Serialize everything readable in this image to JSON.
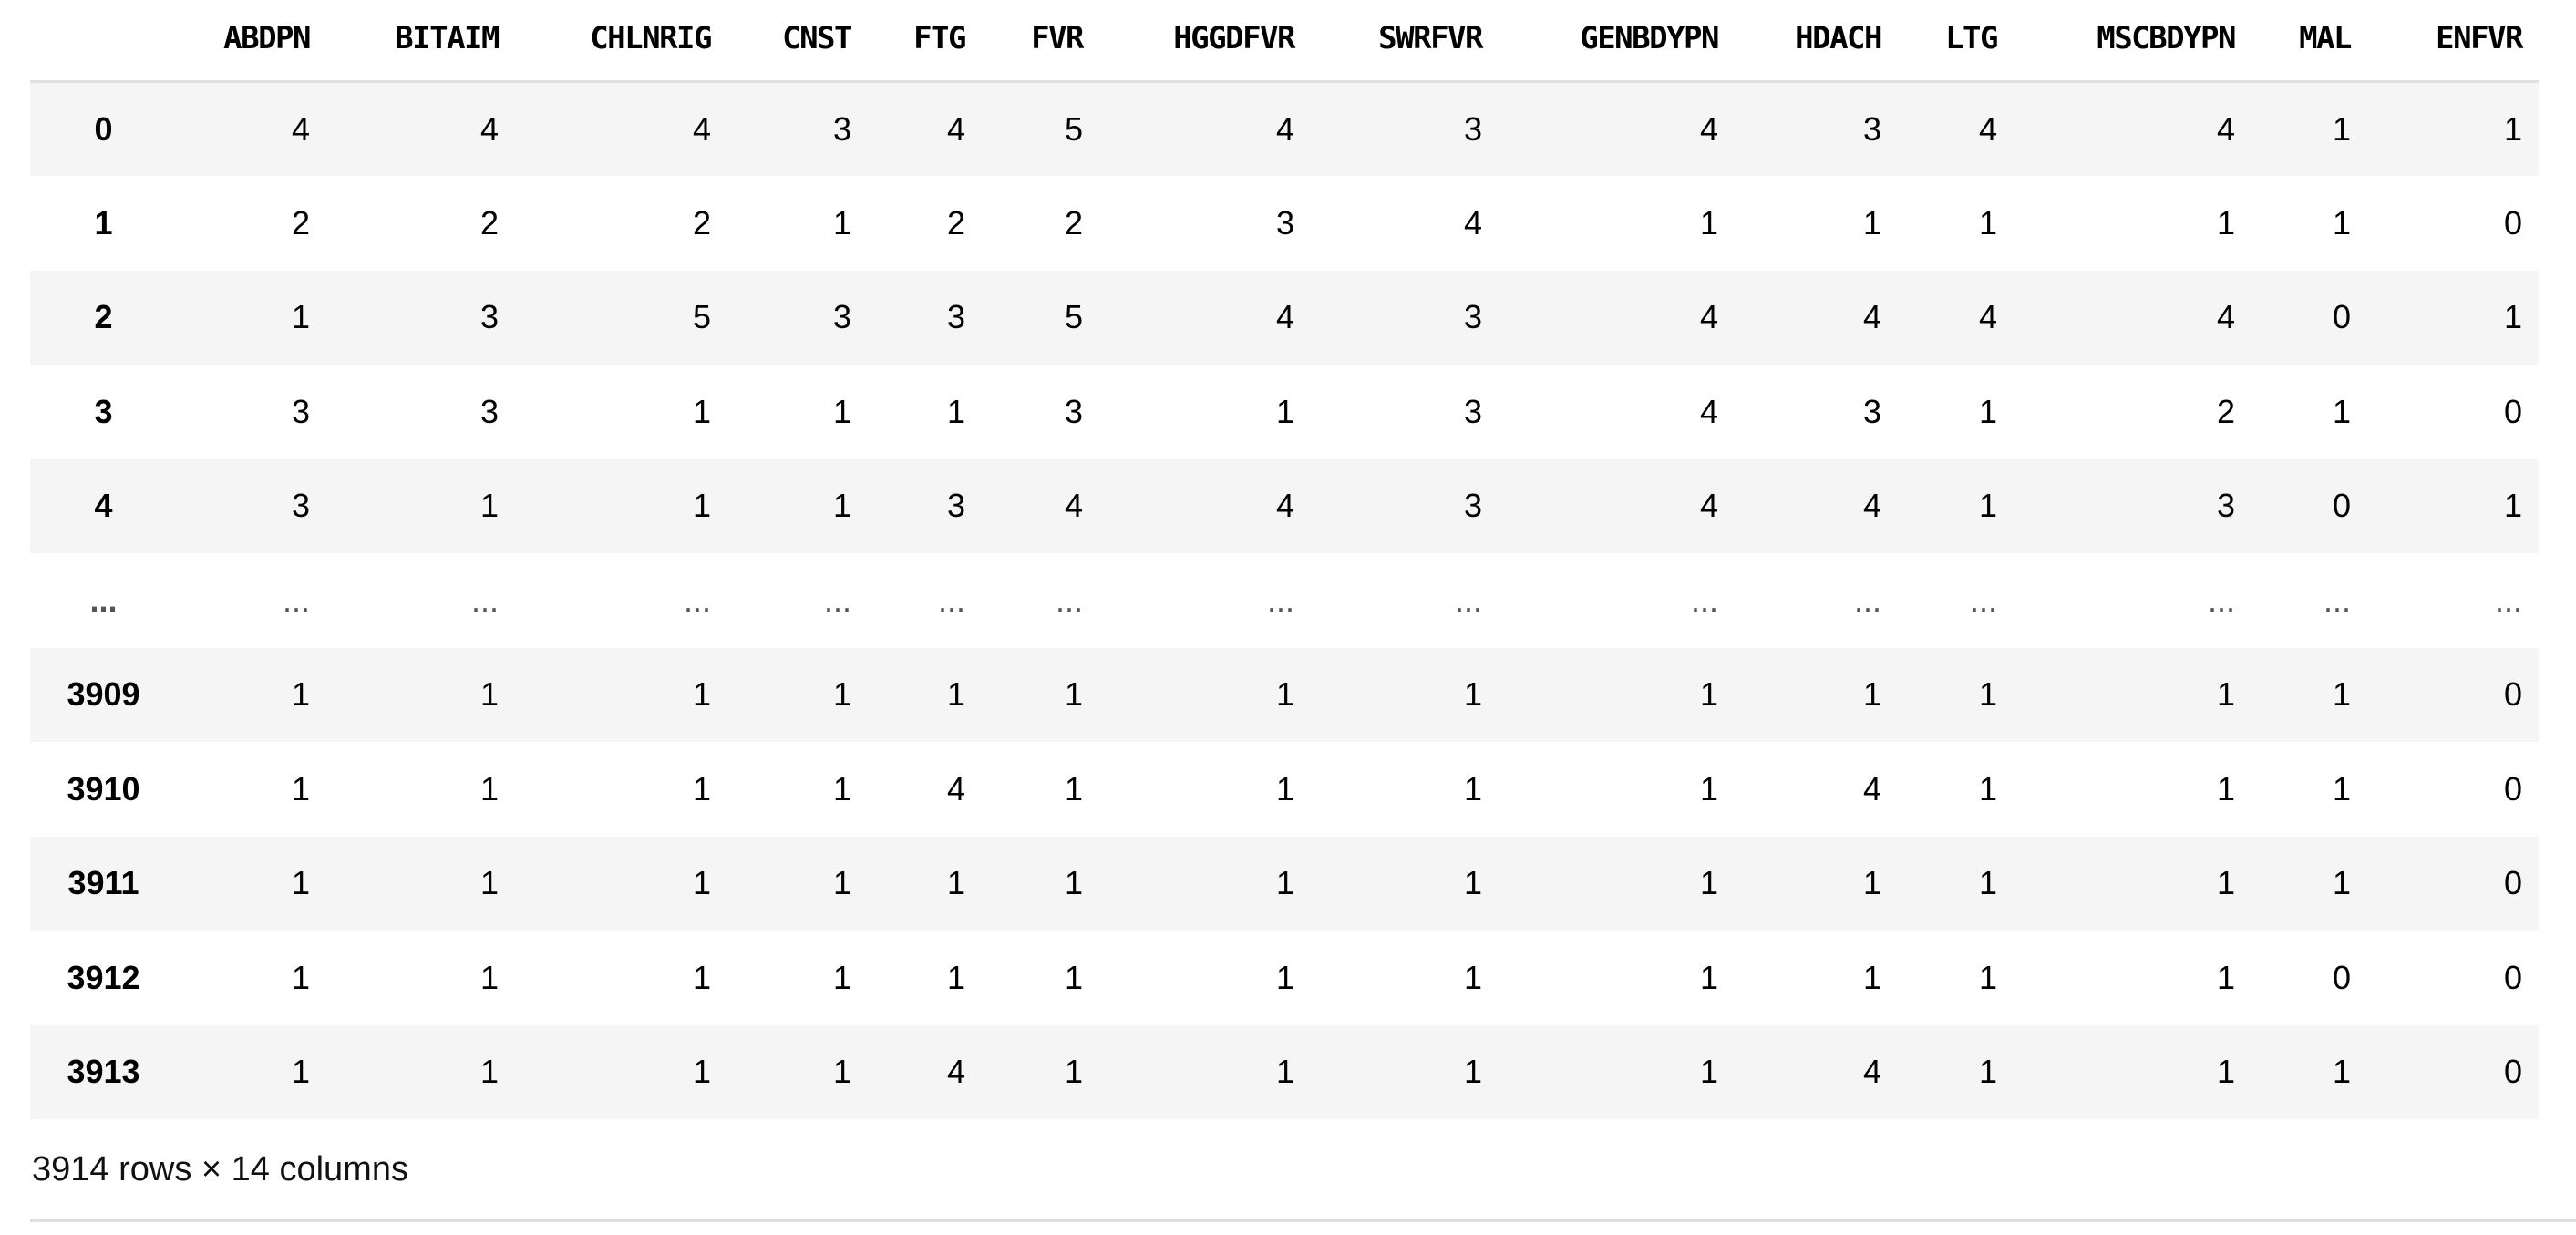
{
  "dataframe": {
    "columns": [
      "ABDPN",
      "BITAIM",
      "CHLNRIG",
      "CNST",
      "FTG",
      "FVR",
      "HGGDFVR",
      "SWRFVR",
      "GENBDYPN",
      "HDACH",
      "LTG",
      "MSCBDYPN",
      "MAL",
      "ENFVR"
    ],
    "rows": [
      {
        "index": "0",
        "values": [
          "4",
          "4",
          "4",
          "3",
          "4",
          "5",
          "4",
          "3",
          "4",
          "3",
          "4",
          "4",
          "1",
          "1"
        ]
      },
      {
        "index": "1",
        "values": [
          "2",
          "2",
          "2",
          "1",
          "2",
          "2",
          "3",
          "4",
          "1",
          "1",
          "1",
          "1",
          "1",
          "0"
        ]
      },
      {
        "index": "2",
        "values": [
          "1",
          "3",
          "5",
          "3",
          "3",
          "5",
          "4",
          "3",
          "4",
          "4",
          "4",
          "4",
          "0",
          "1"
        ]
      },
      {
        "index": "3",
        "values": [
          "3",
          "3",
          "1",
          "1",
          "1",
          "3",
          "1",
          "3",
          "4",
          "3",
          "1",
          "2",
          "1",
          "0"
        ]
      },
      {
        "index": "4",
        "values": [
          "3",
          "1",
          "1",
          "1",
          "3",
          "4",
          "4",
          "3",
          "4",
          "4",
          "1",
          "3",
          "0",
          "1"
        ]
      },
      {
        "index": "...",
        "values": [
          "...",
          "...",
          "...",
          "...",
          "...",
          "...",
          "...",
          "...",
          "...",
          "...",
          "...",
          "...",
          "...",
          "..."
        ]
      },
      {
        "index": "3909",
        "values": [
          "1",
          "1",
          "1",
          "1",
          "1",
          "1",
          "1",
          "1",
          "1",
          "1",
          "1",
          "1",
          "1",
          "0"
        ]
      },
      {
        "index": "3910",
        "values": [
          "1",
          "1",
          "1",
          "1",
          "4",
          "1",
          "1",
          "1",
          "1",
          "4",
          "1",
          "1",
          "1",
          "0"
        ]
      },
      {
        "index": "3911",
        "values": [
          "1",
          "1",
          "1",
          "1",
          "1",
          "1",
          "1",
          "1",
          "1",
          "1",
          "1",
          "1",
          "1",
          "0"
        ]
      },
      {
        "index": "3912",
        "values": [
          "1",
          "1",
          "1",
          "1",
          "1",
          "1",
          "1",
          "1",
          "1",
          "1",
          "1",
          "1",
          "0",
          "0"
        ]
      },
      {
        "index": "3913",
        "values": [
          "1",
          "1",
          "1",
          "1",
          "4",
          "1",
          "1",
          "1",
          "1",
          "4",
          "1",
          "1",
          "1",
          "0"
        ]
      }
    ],
    "shape_caption": "3914 rows × 14 columns"
  }
}
